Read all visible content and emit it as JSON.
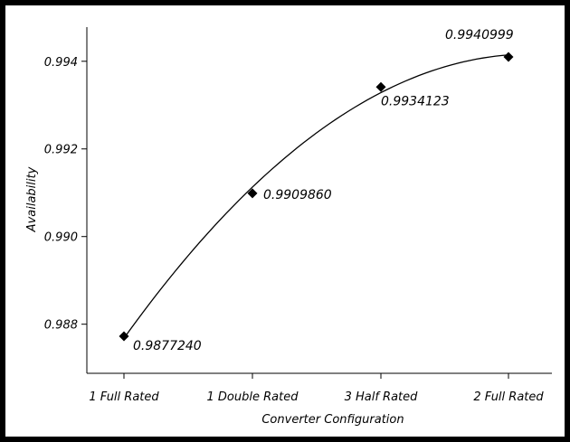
{
  "chart_data": {
    "type": "line",
    "title": "",
    "xlabel": "Converter Configuration",
    "ylabel": "Availability",
    "categories": [
      "1 Full Rated",
      "1 Double Rated",
      "3 Half Rated",
      "2 Full Rated"
    ],
    "series": [
      {
        "values": [
          0.987724,
          0.990986,
          0.9934123,
          0.9940999
        ]
      }
    ],
    "data_labels": [
      "0.9877240",
      "0.9909860",
      "0.9934123",
      "0.9940999"
    ],
    "ylim": [
      0.9869,
      0.9948
    ],
    "yticks": [
      0.988,
      0.99,
      0.992,
      0.994
    ],
    "ytick_labels": [
      "0.988",
      "0.990",
      "0.992",
      "0.994"
    ],
    "marker": "diamond",
    "fit_curve": "smooth quadratic trend",
    "grid": false,
    "legend": "none",
    "colors": {
      "line": "#000000",
      "marker": "#000000",
      "frame": "#000000",
      "background": "#ffffff"
    }
  }
}
